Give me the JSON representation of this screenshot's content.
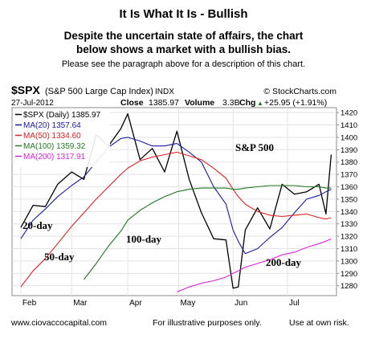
{
  "header": {
    "title": "It Is What It Is - Bullish",
    "subtitle_line1": "Despite the uncertain state of affairs, the chart",
    "subtitle_line2": "below shows a market with a bullish bias.",
    "note": "Please see the paragraph above for a description of this chart."
  },
  "chart_info": {
    "symbol": "$SPX",
    "name": "(S&P 500 Large Cap Index)",
    "exchange": "INDX",
    "credit": "© StockCharts.com",
    "date": "27-Jul-2012",
    "close_label": "Close",
    "close_value": "1385.97",
    "volume_label": "Volume",
    "volume_value": "3.3B",
    "chg_label": "Chg",
    "chg_value": "+25.95 (+1.91%)",
    "chg_arrow": "▲"
  },
  "legend": [
    {
      "text": "$SPX (Daily) 1385.97",
      "color": "#000000"
    },
    {
      "text": "MA(20) 1357.64",
      "color": "#1a1aa8"
    },
    {
      "text": "MA(50) 1334.60",
      "color": "#e02020"
    },
    {
      "text": "MA(100) 1359.32",
      "color": "#1f7a1f"
    },
    {
      "text": "MA(200) 1317.91",
      "color": "#e020e0"
    }
  ],
  "annotations": {
    "sp500": "S&P 500",
    "d20": "20-day",
    "d50": "50-day",
    "d100": "100-day",
    "d200": "200-day"
  },
  "footer": {
    "website": "www.ciovaccocapital.com",
    "illustrative": "For illustrative purposes only.",
    "risk": "Use at own risk."
  },
  "chart_data": {
    "type": "line",
    "title": "",
    "xlabel": "",
    "ylabel": "",
    "ylim": [
      1272,
      1424
    ],
    "yticks": [
      1280,
      1290,
      1300,
      1310,
      1320,
      1330,
      1340,
      1350,
      1360,
      1370,
      1380,
      1390,
      1400,
      1410,
      1420
    ],
    "xticks": [
      "Feb",
      "Mar",
      "Apr",
      "May",
      "Jun",
      "Jul"
    ],
    "grid": true,
    "legend_position": "top-left",
    "x": [
      "2012-02-01",
      "2012-02-08",
      "2012-02-15",
      "2012-02-22",
      "2012-03-01",
      "2012-03-08",
      "2012-03-15",
      "2012-03-22",
      "2012-03-29",
      "2012-04-02",
      "2012-04-09",
      "2012-04-16",
      "2012-04-23",
      "2012-04-30",
      "2012-05-07",
      "2012-05-14",
      "2012-05-21",
      "2012-05-28",
      "2012-06-01",
      "2012-06-04",
      "2012-06-08",
      "2012-06-15",
      "2012-06-22",
      "2012-06-29",
      "2012-07-06",
      "2012-07-13",
      "2012-07-20",
      "2012-07-24",
      "2012-07-27"
    ],
    "series": [
      {
        "name": "$SPX (Daily)",
        "color": "#000000",
        "values": [
          1327,
          1345,
          1344,
          1362,
          1372,
          1366,
          1402,
          1393,
          1407,
          1419,
          1382,
          1391,
          1372,
          1405,
          1366,
          1339,
          1318,
          1317,
          1278,
          1279,
          1325,
          1343,
          1326,
          1362,
          1354,
          1356,
          1362,
          1338,
          1386
        ]
      },
      {
        "name": "MA(20)",
        "color": "#1a1aa8",
        "values": [
          1318,
          1333,
          1342,
          1352,
          1361,
          1368,
          1380,
          1392,
          1399,
          1400,
          1397,
          1393,
          1393,
          1395,
          1388,
          1380,
          1360,
          1346,
          1325,
          1316,
          1306,
          1310,
          1319,
          1327,
          1339,
          1350,
          1353,
          1356,
          1358
        ]
      },
      {
        "name": "MA(50)",
        "color": "#e02020",
        "values": [
          1279,
          1292,
          1302,
          1314,
          1328,
          1339,
          1350,
          1360,
          1370,
          1375,
          1381,
          1384,
          1386,
          1388,
          1385,
          1382,
          1375,
          1367,
          1358,
          1352,
          1346,
          1340,
          1337,
          1336,
          1337,
          1338,
          1335,
          1334,
          1335
        ]
      },
      {
        "name": "MA(100)",
        "color": "#1f7a1f",
        "values": [
          null,
          null,
          null,
          null,
          null,
          1285,
          1298,
          1312,
          1324,
          1333,
          1341,
          1347,
          1352,
          1356,
          1358,
          1359,
          1359,
          1359,
          1358,
          1358,
          1359,
          1360,
          1361,
          1361,
          1361,
          1360,
          1360,
          1359,
          1359
        ]
      },
      {
        "name": "MA(200)",
        "color": "#e020e0",
        "values": [
          null,
          null,
          null,
          null,
          null,
          null,
          null,
          null,
          null,
          null,
          null,
          null,
          null,
          1275,
          1279,
          1282,
          1284,
          1287,
          1290,
          1292,
          1295,
          1298,
          1301,
          1305,
          1307,
          1311,
          1314,
          1316,
          1318
        ]
      }
    ]
  }
}
